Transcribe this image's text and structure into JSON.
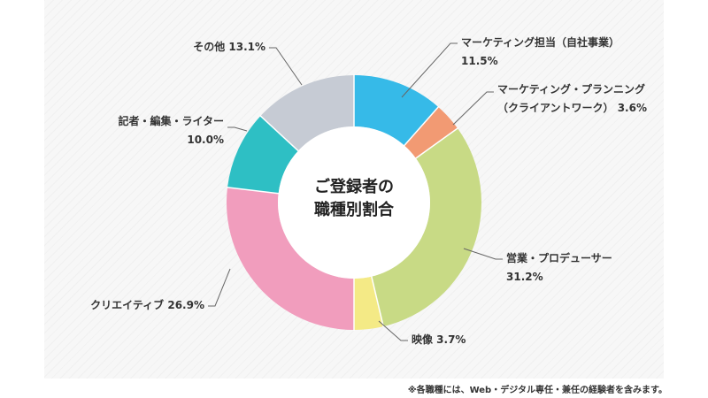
{
  "chart_data": {
    "type": "pie",
    "title": "ご登録者の職種別割合",
    "title_lines": [
      "ご登録者の",
      "職種別割合"
    ],
    "unit": "%",
    "slices": [
      {
        "label_lines": [
          "マーケティング担当（自社事業）"
        ],
        "value": 11.5,
        "value_text": "11.5%",
        "color": "#36bae8"
      },
      {
        "label_lines": [
          "マーケティング・プランニング",
          "（クライアントワーク）"
        ],
        "value": 3.6,
        "value_text": "3.6%",
        "color": "#f29a73"
      },
      {
        "label_lines": [
          "営業・プロデューサー"
        ],
        "value": 31.2,
        "value_text": "31.2%",
        "color": "#c8da85"
      },
      {
        "label_lines": [
          "映像"
        ],
        "value": 3.7,
        "value_text": "3.7%",
        "color": "#f4ea86"
      },
      {
        "label_lines": [
          "クリエイティブ"
        ],
        "value": 26.9,
        "value_text": "26.9%",
        "color": "#f19dbd"
      },
      {
        "label_lines": [
          "記者・編集・ライター"
        ],
        "value": 10.0,
        "value_text": "10.0%",
        "color": "#2ebfc4"
      },
      {
        "label_lines": [
          "その他"
        ],
        "value": 13.1,
        "value_text": "13.1%",
        "color": "#c6cbd4"
      }
    ]
  },
  "footnote": "※各職種には、Web・デジタル専任・兼任の経験者を含みます。",
  "colors": {
    "leader": "#666666",
    "text": "#333333",
    "hole": "#ffffff"
  }
}
